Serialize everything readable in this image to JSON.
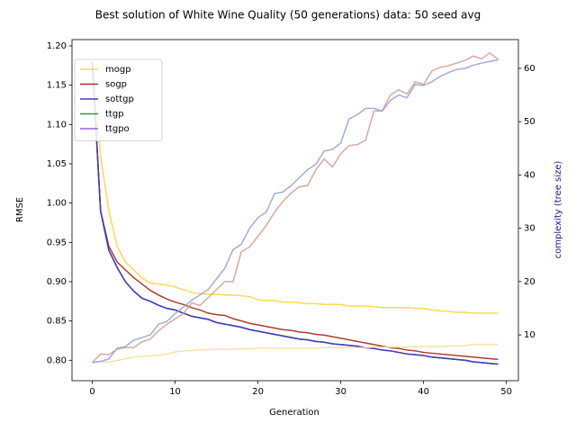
{
  "chart_data": {
    "type": "line",
    "title": "Best solution of White Wine Quality (50 generations) data: 50 seed avg",
    "xlabel": "Generation",
    "ylabel": "RMSE",
    "y2label": "complexity (tree size)",
    "x": [
      0,
      1,
      2,
      3,
      4,
      5,
      6,
      7,
      8,
      9,
      10,
      11,
      12,
      13,
      14,
      15,
      16,
      17,
      18,
      19,
      20,
      21,
      22,
      23,
      24,
      25,
      26,
      27,
      28,
      29,
      30,
      31,
      32,
      33,
      34,
      35,
      36,
      37,
      38,
      39,
      40,
      41,
      42,
      43,
      44,
      45,
      46,
      47,
      48,
      49
    ],
    "xlim": [
      -2.45,
      51.45
    ],
    "xticks": [
      0,
      10,
      20,
      30,
      40,
      50
    ],
    "ylim": [
      0.774,
      1.208
    ],
    "yticks": [
      {
        "value": 0.8,
        "label": "0.80"
      },
      {
        "value": 0.85,
        "label": "0.85"
      },
      {
        "value": 0.9,
        "label": "0.90"
      },
      {
        "value": 0.95,
        "label": "0.95"
      },
      {
        "value": 1.0,
        "label": "1.00"
      },
      {
        "value": 1.05,
        "label": "1.05"
      },
      {
        "value": 1.1,
        "label": "1.10"
      },
      {
        "value": 1.15,
        "label": "1.15"
      },
      {
        "value": 1.2,
        "label": "1.20"
      }
    ],
    "y2lim": [
      1.4,
      65.4
    ],
    "y2ticks": [
      10,
      20,
      30,
      40,
      50,
      60
    ],
    "legend": "upper left",
    "series": [
      {
        "name": "ttgp",
        "color": "#2ca02c",
        "values": [
          1.18,
          0.99,
          0.94,
          0.918,
          0.9,
          0.888,
          0.879,
          0.875,
          0.87,
          0.866,
          0.864,
          0.86,
          0.856,
          0.854,
          0.852,
          0.848,
          0.846,
          0.844,
          0.842,
          0.839,
          0.837,
          0.835,
          0.833,
          0.831,
          0.829,
          0.827,
          0.826,
          0.824,
          0.823,
          0.821,
          0.82,
          0.819,
          0.818,
          0.816,
          0.815,
          0.813,
          0.812,
          0.81,
          0.808,
          0.807,
          0.806,
          0.804,
          0.803,
          0.802,
          0.801,
          0.8,
          0.798,
          0.797,
          0.796,
          0.795
        ]
      },
      {
        "name": "ttgpo",
        "color": "#9467dd",
        "values": [
          1.18,
          0.99,
          0.94,
          0.918,
          0.9,
          0.888,
          0.879,
          0.875,
          0.87,
          0.866,
          0.864,
          0.86,
          0.856,
          0.854,
          0.852,
          0.848,
          0.846,
          0.844,
          0.842,
          0.839,
          0.837,
          0.835,
          0.833,
          0.831,
          0.829,
          0.827,
          0.826,
          0.824,
          0.823,
          0.821,
          0.82,
          0.819,
          0.818,
          0.816,
          0.815,
          0.813,
          0.812,
          0.81,
          0.808,
          0.807,
          0.806,
          0.804,
          0.803,
          0.802,
          0.801,
          0.8,
          0.798,
          0.797,
          0.796,
          0.795
        ]
      },
      {
        "name": "mogp",
        "color": "#ffd54f",
        "values": [
          1.18,
          1.06,
          0.99,
          0.945,
          0.925,
          0.915,
          0.905,
          0.898,
          0.897,
          0.896,
          0.893,
          0.89,
          0.886,
          0.885,
          0.884,
          0.884,
          0.883,
          0.883,
          0.882,
          0.881,
          0.877,
          0.876,
          0.876,
          0.874,
          0.874,
          0.873,
          0.872,
          0.872,
          0.871,
          0.871,
          0.871,
          0.869,
          0.869,
          0.869,
          0.868,
          0.867,
          0.867,
          0.867,
          0.867,
          0.866,
          0.866,
          0.864,
          0.863,
          0.862,
          0.861,
          0.861,
          0.86,
          0.86,
          0.86,
          0.86
        ]
      },
      {
        "name": "sogp",
        "color": "#a83228",
        "values": [
          1.18,
          0.99,
          0.945,
          0.925,
          0.915,
          0.905,
          0.897,
          0.889,
          0.883,
          0.878,
          0.874,
          0.871,
          0.867,
          0.864,
          0.86,
          0.858,
          0.857,
          0.853,
          0.85,
          0.847,
          0.845,
          0.843,
          0.841,
          0.839,
          0.838,
          0.836,
          0.835,
          0.833,
          0.832,
          0.83,
          0.828,
          0.826,
          0.824,
          0.822,
          0.82,
          0.818,
          0.816,
          0.815,
          0.813,
          0.812,
          0.81,
          0.809,
          0.808,
          0.807,
          0.806,
          0.805,
          0.804,
          0.803,
          0.802,
          0.801
        ]
      },
      {
        "name": "sottgp",
        "color": "#3a3fb8",
        "values": [
          1.18,
          0.99,
          0.94,
          0.918,
          0.9,
          0.888,
          0.879,
          0.875,
          0.87,
          0.866,
          0.864,
          0.86,
          0.856,
          0.854,
          0.852,
          0.848,
          0.846,
          0.844,
          0.842,
          0.839,
          0.837,
          0.835,
          0.833,
          0.831,
          0.829,
          0.827,
          0.826,
          0.824,
          0.823,
          0.821,
          0.82,
          0.819,
          0.818,
          0.816,
          0.815,
          0.813,
          0.812,
          0.81,
          0.808,
          0.807,
          0.806,
          0.804,
          0.803,
          0.802,
          0.801,
          0.8,
          0.798,
          0.797,
          0.796,
          0.795
        ]
      },
      {
        "color": "#f5de9a",
        "axis": "y2",
        "values": [
          4.8,
          5,
          4.9,
          5.2,
          5.5,
          5.8,
          6,
          6.1,
          6.2,
          6.4,
          6.8,
          7,
          7.1,
          7.2,
          7.2,
          7.3,
          7.3,
          7.3,
          7.4,
          7.4,
          7.5,
          7.5,
          7.5,
          7.5,
          7.5,
          7.5,
          7.5,
          7.5,
          7.6,
          7.6,
          7.6,
          7.6,
          7.6,
          7.6,
          7.7,
          7.7,
          7.7,
          7.7,
          7.7,
          7.8,
          7.8,
          7.8,
          7.8,
          7.9,
          7.9,
          8,
          8.2,
          8.2,
          8.2,
          8.2
        ]
      },
      {
        "color": "#d4a098",
        "axis": "y2",
        "values": [
          4.8,
          6.4,
          6.3,
          7.3,
          7.6,
          7.6,
          8.7,
          9.2,
          10.8,
          12,
          13,
          14,
          16,
          15.5,
          17,
          18.5,
          20,
          20,
          25.6,
          26.5,
          28.5,
          30.5,
          33,
          35,
          36.6,
          37.8,
          38,
          41,
          43,
          41.5,
          44,
          45.5,
          45.7,
          46.5,
          52,
          52,
          55,
          56,
          55.2,
          57.5,
          57,
          59.5,
          60.2,
          60.5,
          61,
          61.5,
          62.3,
          61.8,
          62.9,
          61.7
        ]
      },
      {
        "color": "#9aa2d6",
        "axis": "y2",
        "values": [
          4.8,
          5,
          5.5,
          7.5,
          7.8,
          9,
          9.5,
          10,
          12,
          12.5,
          14,
          15.2,
          16.5,
          17.5,
          18.5,
          20.5,
          22.5,
          26,
          27,
          30,
          32,
          33,
          36.5,
          36.8,
          38,
          39.5,
          41,
          42,
          44.5,
          44.8,
          46,
          50.5,
          51.3,
          52.5,
          52.5,
          52,
          54,
          55,
          54.5,
          57,
          56.8,
          57.5,
          58.5,
          59.2,
          59.8,
          60,
          60.6,
          61,
          61.3,
          61.6
        ]
      }
    ]
  }
}
